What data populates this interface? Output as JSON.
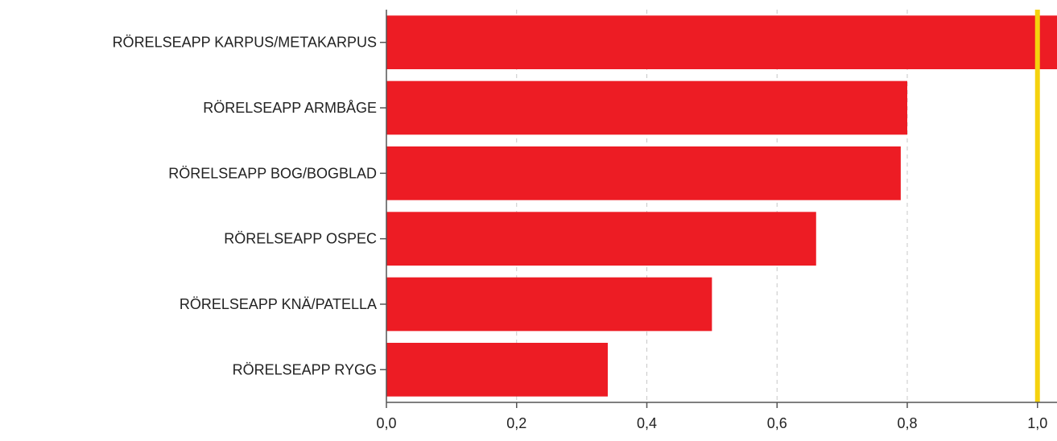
{
  "chart_data": {
    "type": "bar",
    "orientation": "horizontal",
    "categories": [
      "RÖRELSEAPP KARPUS/METAKARPUS",
      "RÖRELSEAPP ARMBÅGE",
      "RÖRELSEAPP BOG/BOGBLAD",
      "RÖRELSEAPP OSPEC",
      "RÖRELSEAPP KNÄ/PATELLA",
      "RÖRELSEAPP RYGG"
    ],
    "values": [
      1.03,
      0.8,
      0.79,
      0.66,
      0.5,
      0.34
    ],
    "xlim": [
      0,
      1.03
    ],
    "x_ticks": [
      "0,0",
      "0,2",
      "0,4",
      "0,6",
      "0,8",
      "1,0"
    ],
    "x_tick_values": [
      0,
      0.2,
      0.4,
      0.6,
      0.8,
      1.0
    ],
    "reference_line": 1.0,
    "grid": "vertical dashed",
    "colors": {
      "bar": "#ed1c24",
      "reference_line": "#f5d20e",
      "grid": "#c8c8c8"
    }
  }
}
